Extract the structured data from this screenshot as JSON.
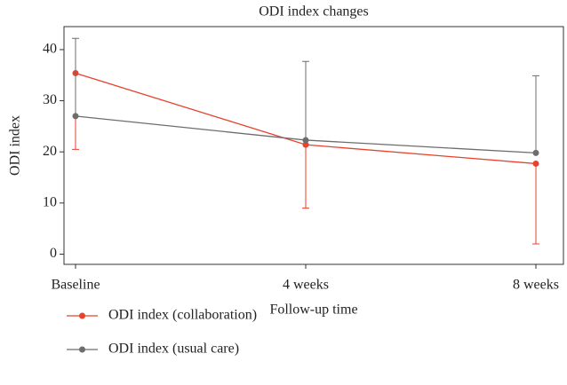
{
  "chart_data": {
    "type": "line",
    "title": "ODI index changes",
    "x_label": "Follow-up time",
    "y_label": "ODI index",
    "categories": [
      "Baseline",
      "4 weeks",
      "8 weeks"
    ],
    "series": [
      {
        "name": "ODI index (collaboration)",
        "color": "#e8412c",
        "values": [
          35.4,
          21.4,
          17.7
        ],
        "errors": [
          14.9,
          12.4,
          15.7
        ],
        "error_direction": "down"
      },
      {
        "name": "ODI index (usual care)",
        "color": "#6d6d6d",
        "values": [
          27.0,
          22.3,
          19.8
        ],
        "errors": [
          15.2,
          15.4,
          15.1
        ],
        "error_direction": "up"
      }
    ],
    "ylim": [
      -2,
      44.5
    ],
    "yticks": [
      0,
      10,
      20,
      30,
      40
    ],
    "legend": "bottom"
  }
}
